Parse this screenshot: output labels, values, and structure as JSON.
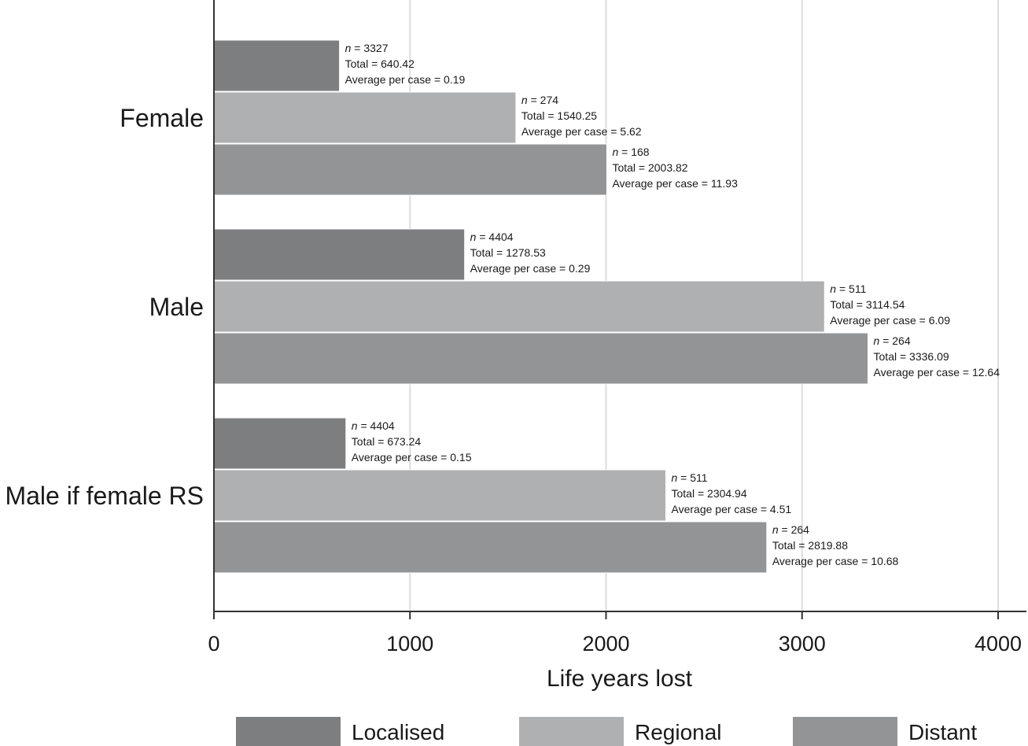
{
  "chart_data": {
    "type": "bar",
    "orientation": "horizontal",
    "title": "",
    "xlabel": "Life years lost",
    "ylabel": "",
    "xlim": [
      0,
      4000
    ],
    "xticks": [
      0,
      1000,
      2000,
      3000,
      4000
    ],
    "grid": "vertical",
    "categories": [
      "Female",
      "Male",
      "Male if female RS"
    ],
    "series": [
      {
        "name": "Localised",
        "color": "#7d7e80",
        "values": [
          640.42,
          1278.53,
          673.24
        ],
        "annotations": [
          {
            "n_label": "n",
            "n_text": " = 3327",
            "total": "Total = 640.42",
            "avg": "Average per case = 0.19"
          },
          {
            "n_label": "n",
            "n_text": " = 4404",
            "total": "Total = 1278.53",
            "avg": "Average per case = 0.29"
          },
          {
            "n_label": "n",
            "n_text": " = 4404",
            "total": "Total = 673.24",
            "avg": "Average per case = 0.15"
          }
        ]
      },
      {
        "name": "Regional",
        "color": "#afb0b2",
        "values": [
          1540.25,
          3114.54,
          2304.94
        ],
        "annotations": [
          {
            "n_label": "n",
            "n_text": " = 274",
            "total": "Total = 1540.25",
            "avg": "Average per case = 5.62"
          },
          {
            "n_label": "n",
            "n_text": " = 511",
            "total": "Total = 3114.54",
            "avg": "Average per case = 6.09"
          },
          {
            "n_label": "n",
            "n_text": " = 511",
            "total": "Total = 2304.94",
            "avg": "Average per case = 4.51"
          }
        ]
      },
      {
        "name": "Distant",
        "color": "#939496",
        "values": [
          2003.82,
          3336.09,
          2819.88
        ],
        "annotations": [
          {
            "n_label": "n",
            "n_text": " = 168",
            "total": "Total = 2003.82",
            "avg": "Average per case = 11.93"
          },
          {
            "n_label": "n",
            "n_text": " = 264",
            "total": "Total = 3336.09",
            "avg": "Average per case = 12.64"
          },
          {
            "n_label": "n",
            "n_text": " = 264",
            "total": "Total = 2819.88",
            "avg": "Average per case = 10.68"
          }
        ]
      }
    ],
    "legend": {
      "position": "bottom",
      "entries": [
        "Localised",
        "Regional",
        "Distant"
      ]
    }
  }
}
